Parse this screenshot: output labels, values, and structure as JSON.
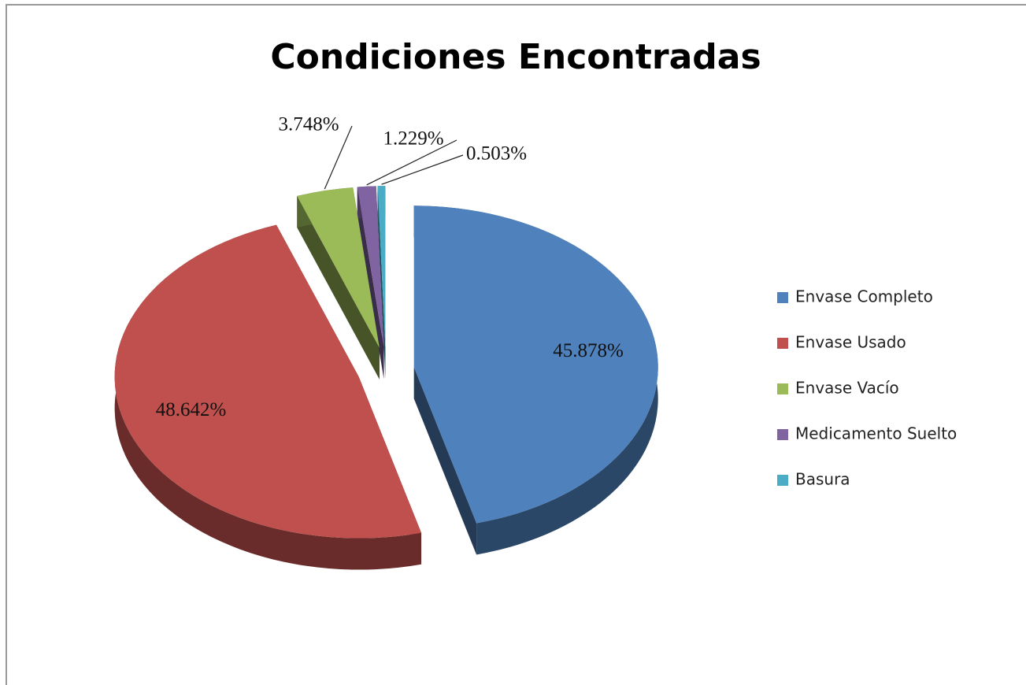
{
  "chart_data": {
    "type": "pie",
    "title": "Condiciones Encontradas",
    "categories": [
      "Envase Completo",
      "Envase Usado",
      "Envase Vacío",
      "Medicamento Suelto",
      "Basura"
    ],
    "values": [
      45.878,
      48.642,
      3.748,
      1.229,
      0.503
    ],
    "value_labels": [
      "45.878%",
      "48.642%",
      "3.748%",
      "1.229%",
      "0.503%"
    ],
    "colors": [
      "#4f81bd",
      "#c0504d",
      "#9bbb59",
      "#8064a2",
      "#4bacc6"
    ],
    "legend": "right",
    "explode": true,
    "three_d": true
  }
}
